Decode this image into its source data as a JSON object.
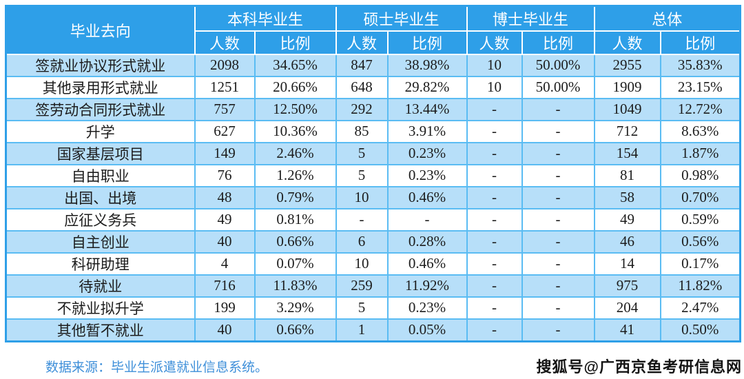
{
  "colors": {
    "header_bg": "#2e9fe8",
    "row_alt_bg": "#b7dff9",
    "grid_line": "#5abcf3",
    "source_text": "#3e8fd9"
  },
  "table": {
    "corner_header": "毕业去向",
    "groups": [
      {
        "label": "本科毕业生",
        "cols": [
          "人数",
          "比例"
        ]
      },
      {
        "label": "硕士毕业生",
        "cols": [
          "人数",
          "比例"
        ]
      },
      {
        "label": "博士毕业生",
        "cols": [
          "人数",
          "比例"
        ]
      },
      {
        "label": "总体",
        "cols": [
          "人数",
          "比例"
        ]
      }
    ],
    "rows": [
      {
        "label": "签就业协议形式就业",
        "values": [
          "2098",
          "34.65%",
          "847",
          "38.98%",
          "10",
          "50.00%",
          "2955",
          "35.83%"
        ]
      },
      {
        "label": "其他录用形式就业",
        "values": [
          "1251",
          "20.66%",
          "648",
          "29.82%",
          "10",
          "50.00%",
          "1909",
          "23.15%"
        ]
      },
      {
        "label": "签劳动合同形式就业",
        "values": [
          "757",
          "12.50%",
          "292",
          "13.44%",
          "-",
          "-",
          "1049",
          "12.72%"
        ]
      },
      {
        "label": "升学",
        "values": [
          "627",
          "10.36%",
          "85",
          "3.91%",
          "-",
          "-",
          "712",
          "8.63%"
        ]
      },
      {
        "label": "国家基层项目",
        "values": [
          "149",
          "2.46%",
          "5",
          "0.23%",
          "-",
          "-",
          "154",
          "1.87%"
        ]
      },
      {
        "label": "自由职业",
        "values": [
          "76",
          "1.26%",
          "5",
          "0.23%",
          "-",
          "-",
          "81",
          "0.98%"
        ]
      },
      {
        "label": "出国、出境",
        "values": [
          "48",
          "0.79%",
          "10",
          "0.46%",
          "-",
          "-",
          "58",
          "0.70%"
        ]
      },
      {
        "label": "应征义务兵",
        "values": [
          "49",
          "0.81%",
          "-",
          "-",
          "-",
          "-",
          "49",
          "0.59%"
        ]
      },
      {
        "label": "自主创业",
        "values": [
          "40",
          "0.66%",
          "6",
          "0.28%",
          "-",
          "-",
          "46",
          "0.56%"
        ]
      },
      {
        "label": "科研助理",
        "values": [
          "4",
          "0.07%",
          "10",
          "0.46%",
          "-",
          "-",
          "14",
          "0.17%"
        ]
      },
      {
        "label": "待就业",
        "values": [
          "716",
          "11.83%",
          "259",
          "11.92%",
          "-",
          "-",
          "975",
          "11.82%"
        ]
      },
      {
        "label": "不就业拟升学",
        "values": [
          "199",
          "3.29%",
          "5",
          "0.23%",
          "-",
          "-",
          "204",
          "2.47%"
        ]
      },
      {
        "label": "其他暂不就业",
        "values": [
          "40",
          "0.66%",
          "1",
          "0.05%",
          "-",
          "-",
          "41",
          "0.50%"
        ]
      }
    ]
  },
  "footer": {
    "source_note": "数据来源：毕业生派遣就业信息系统。"
  },
  "watermark": {
    "text": "搜狐号@广西京鱼考研信息网"
  },
  "chart_data": {
    "type": "table",
    "title": "毕业去向统计表",
    "columns": [
      "毕业去向",
      "本科毕业生 人数",
      "本科毕业生 比例",
      "硕士毕业生 人数",
      "硕士毕业生 比例",
      "博士毕业生 人数",
      "博士毕业生 比例",
      "总体 人数",
      "总体 比例"
    ],
    "rows": [
      [
        "签就业协议形式就业",
        "2098",
        "34.65%",
        "847",
        "38.98%",
        "10",
        "50.00%",
        "2955",
        "35.83%"
      ],
      [
        "其他录用形式就业",
        "1251",
        "20.66%",
        "648",
        "29.82%",
        "10",
        "50.00%",
        "1909",
        "23.15%"
      ],
      [
        "签劳动合同形式就业",
        "757",
        "12.50%",
        "292",
        "13.44%",
        "-",
        "-",
        "1049",
        "12.72%"
      ],
      [
        "升学",
        "627",
        "10.36%",
        "85",
        "3.91%",
        "-",
        "-",
        "712",
        "8.63%"
      ],
      [
        "国家基层项目",
        "149",
        "2.46%",
        "5",
        "0.23%",
        "-",
        "-",
        "154",
        "1.87%"
      ],
      [
        "自由职业",
        "76",
        "1.26%",
        "5",
        "0.23%",
        "-",
        "-",
        "81",
        "0.98%"
      ],
      [
        "出国、出境",
        "48",
        "0.79%",
        "10",
        "0.46%",
        "-",
        "-",
        "58",
        "0.70%"
      ],
      [
        "应征义务兵",
        "49",
        "0.81%",
        "-",
        "-",
        "-",
        "-",
        "49",
        "0.59%"
      ],
      [
        "自主创业",
        "40",
        "0.66%",
        "6",
        "0.28%",
        "-",
        "-",
        "46",
        "0.56%"
      ],
      [
        "科研助理",
        "4",
        "0.07%",
        "10",
        "0.46%",
        "-",
        "-",
        "14",
        "0.17%"
      ],
      [
        "待就业",
        "716",
        "11.83%",
        "259",
        "11.92%",
        "-",
        "-",
        "975",
        "11.82%"
      ],
      [
        "不就业拟升学",
        "199",
        "3.29%",
        "5",
        "0.23%",
        "-",
        "-",
        "204",
        "2.47%"
      ],
      [
        "其他暂不就业",
        "40",
        "0.66%",
        "1",
        "0.05%",
        "-",
        "-",
        "41",
        "0.50%"
      ]
    ],
    "source_note": "数据来源：毕业生派遣就业信息系统。"
  }
}
